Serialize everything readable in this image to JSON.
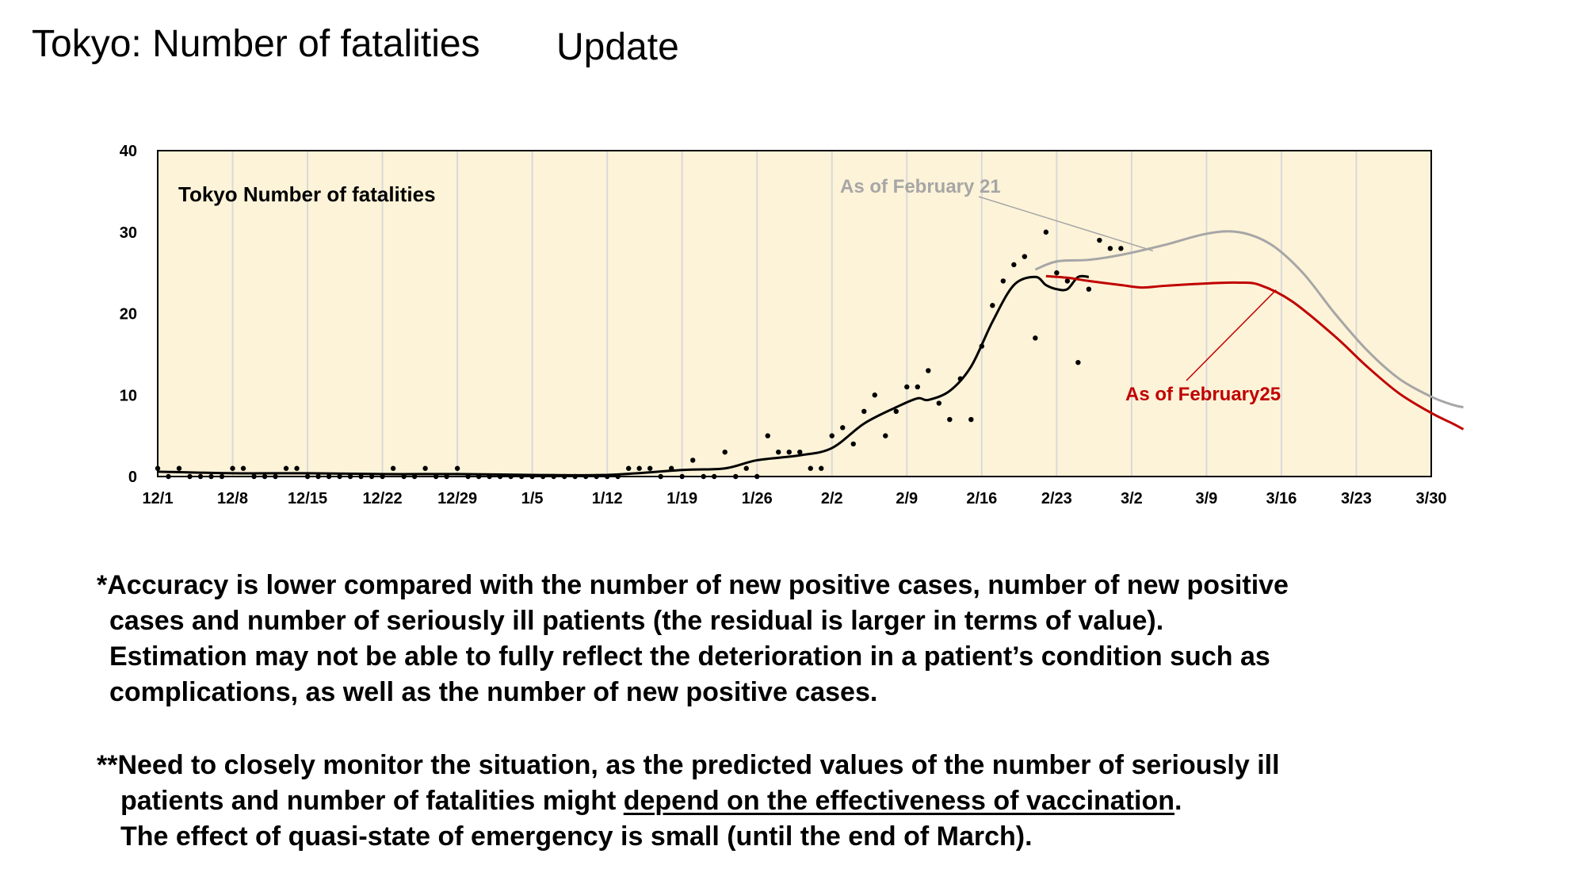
{
  "slide": {
    "title": "Tokyo: Number of fatalities",
    "update_label": "Update"
  },
  "chart_data": {
    "type": "line",
    "title": "Tokyo  Number of fatalities",
    "ylim": [
      0,
      40
    ],
    "y_ticks": [
      0,
      10,
      20,
      30,
      40
    ],
    "x_tick_labels": [
      "12/1",
      "12/8",
      "12/15",
      "12/22",
      "12/29",
      "1/5",
      "1/12",
      "1/19",
      "1/26",
      "2/2",
      "2/9",
      "2/16",
      "2/23",
      "3/2",
      "3/9",
      "3/16",
      "3/23",
      "3/30"
    ],
    "x_start": "12/1",
    "x_end": "3/30",
    "grid": true,
    "background_color": "#fdf3d8",
    "annotations": [
      {
        "text": "As of February 21",
        "color": "#a6a6a6"
      },
      {
        "text": "As of February25",
        "color": "#c00000"
      }
    ],
    "series": [
      {
        "name": "Tokyo  Number of fatalities",
        "kind": "scatter",
        "color": "#000000",
        "points": [
          [
            0,
            1
          ],
          [
            1,
            0
          ],
          [
            2,
            1
          ],
          [
            3,
            0
          ],
          [
            4,
            0
          ],
          [
            5,
            0
          ],
          [
            6,
            0
          ],
          [
            7,
            1
          ],
          [
            8,
            1
          ],
          [
            9,
            0
          ],
          [
            10,
            0
          ],
          [
            11,
            0
          ],
          [
            12,
            1
          ],
          [
            13,
            1
          ],
          [
            14,
            0
          ],
          [
            15,
            0
          ],
          [
            16,
            0
          ],
          [
            17,
            0
          ],
          [
            18,
            0
          ],
          [
            19,
            0
          ],
          [
            20,
            0
          ],
          [
            21,
            0
          ],
          [
            22,
            1
          ],
          [
            23,
            0
          ],
          [
            24,
            0
          ],
          [
            25,
            1
          ],
          [
            26,
            0
          ],
          [
            27,
            0
          ],
          [
            28,
            1
          ],
          [
            29,
            0
          ],
          [
            30,
            0
          ],
          [
            31,
            0
          ],
          [
            32,
            0
          ],
          [
            33,
            0
          ],
          [
            34,
            0
          ],
          [
            35,
            0
          ],
          [
            36,
            0
          ],
          [
            37,
            0
          ],
          [
            38,
            0
          ],
          [
            39,
            0
          ],
          [
            40,
            0
          ],
          [
            41,
            0
          ],
          [
            42,
            0
          ],
          [
            43,
            0
          ],
          [
            44,
            1
          ],
          [
            45,
            1
          ],
          [
            46,
            1
          ],
          [
            47,
            0
          ],
          [
            48,
            1
          ],
          [
            49,
            0
          ],
          [
            50,
            2
          ],
          [
            51,
            0
          ],
          [
            52,
            0
          ],
          [
            53,
            3
          ],
          [
            54,
            0
          ],
          [
            55,
            1
          ],
          [
            56,
            0
          ],
          [
            57,
            5
          ],
          [
            58,
            3
          ],
          [
            59,
            3
          ],
          [
            60,
            3
          ],
          [
            61,
            1
          ],
          [
            62,
            1
          ],
          [
            63,
            5
          ],
          [
            64,
            6
          ],
          [
            65,
            4
          ],
          [
            66,
            8
          ],
          [
            67,
            10
          ],
          [
            68,
            5
          ],
          [
            69,
            8
          ],
          [
            70,
            11
          ],
          [
            71,
            11
          ],
          [
            72,
            13
          ],
          [
            73,
            9
          ],
          [
            74,
            7
          ],
          [
            75,
            12
          ],
          [
            76,
            7
          ],
          [
            77,
            16
          ],
          [
            78,
            21
          ],
          [
            79,
            24
          ],
          [
            80,
            26
          ],
          [
            81,
            27
          ],
          [
            82,
            17
          ],
          [
            83,
            30
          ],
          [
            84,
            25
          ],
          [
            85,
            24
          ],
          [
            86,
            14
          ],
          [
            87,
            23
          ],
          [
            88,
            29
          ],
          [
            89,
            28
          ],
          [
            90,
            28
          ]
        ]
      },
      {
        "name": "Tokyo  Number of fatalities",
        "kind": "line",
        "color": "#000000",
        "points": [
          [
            0,
            0.6
          ],
          [
            7,
            0.4
          ],
          [
            14,
            0.4
          ],
          [
            21,
            0.3
          ],
          [
            28,
            0.3
          ],
          [
            35,
            0.2
          ],
          [
            42,
            0.2
          ],
          [
            49,
            0.8
          ],
          [
            53,
            1.0
          ],
          [
            56,
            2.0
          ],
          [
            60,
            2.6
          ],
          [
            63,
            3.5
          ],
          [
            66,
            6.5
          ],
          [
            69,
            8.5
          ],
          [
            71,
            9.6
          ],
          [
            72,
            9.4
          ],
          [
            74,
            10.5
          ],
          [
            76,
            13.5
          ],
          [
            78,
            19
          ],
          [
            80,
            23.5
          ],
          [
            82,
            24.5
          ],
          [
            83,
            23.5
          ],
          [
            84,
            23
          ],
          [
            85,
            23
          ],
          [
            86,
            24.5
          ],
          [
            87,
            24.5
          ]
        ]
      },
      {
        "name": "As of February 21",
        "kind": "line",
        "color": "#a6a6a6",
        "points": [
          [
            82,
            25.4
          ],
          [
            84,
            26.4
          ],
          [
            87,
            26.6
          ],
          [
            90,
            27.2
          ],
          [
            94,
            28.4
          ],
          [
            98,
            29.8
          ],
          [
            101,
            30.0
          ],
          [
            104,
            28.5
          ],
          [
            107,
            25
          ],
          [
            110,
            20
          ],
          [
            113,
            15.5
          ],
          [
            116,
            12
          ],
          [
            119,
            9.8
          ],
          [
            121,
            8.8
          ],
          [
            122,
            8.5
          ]
        ]
      },
      {
        "name": "As of February25",
        "kind": "line",
        "color": "#c00000",
        "points": [
          [
            83,
            24.6
          ],
          [
            85,
            24.4
          ],
          [
            87,
            24
          ],
          [
            90,
            23.5
          ],
          [
            92,
            23.2
          ],
          [
            94,
            23.4
          ],
          [
            98,
            23.7
          ],
          [
            101,
            23.8
          ],
          [
            103,
            23.5
          ],
          [
            106,
            21.5
          ],
          [
            110,
            17.2
          ],
          [
            113,
            13.5
          ],
          [
            116,
            10.2
          ],
          [
            119,
            7.8
          ],
          [
            121,
            6.5
          ],
          [
            122,
            5.8
          ]
        ]
      }
    ]
  },
  "notes": {
    "note1_lines": [
      "*Accuracy is lower compared with the number of new positive cases, number of new positive",
      "cases and number of seriously ill patients (the residual is larger in terms of value).",
      "Estimation may not be able to fully reflect the deterioration in a patient’s condition such as",
      "complications, as well as the number of new positive cases."
    ],
    "note2_line1": "**Need to closely monitor the situation, as the predicted values of the number of seriously ill",
    "note2_line2_pre": "patients and number of fatalities might ",
    "note2_line2_underlined": "depend on the effectiveness of vaccination",
    "note2_line2_post": ".",
    "note2_line3": "The effect of quasi-state of emergency is small (until the end of March)."
  }
}
